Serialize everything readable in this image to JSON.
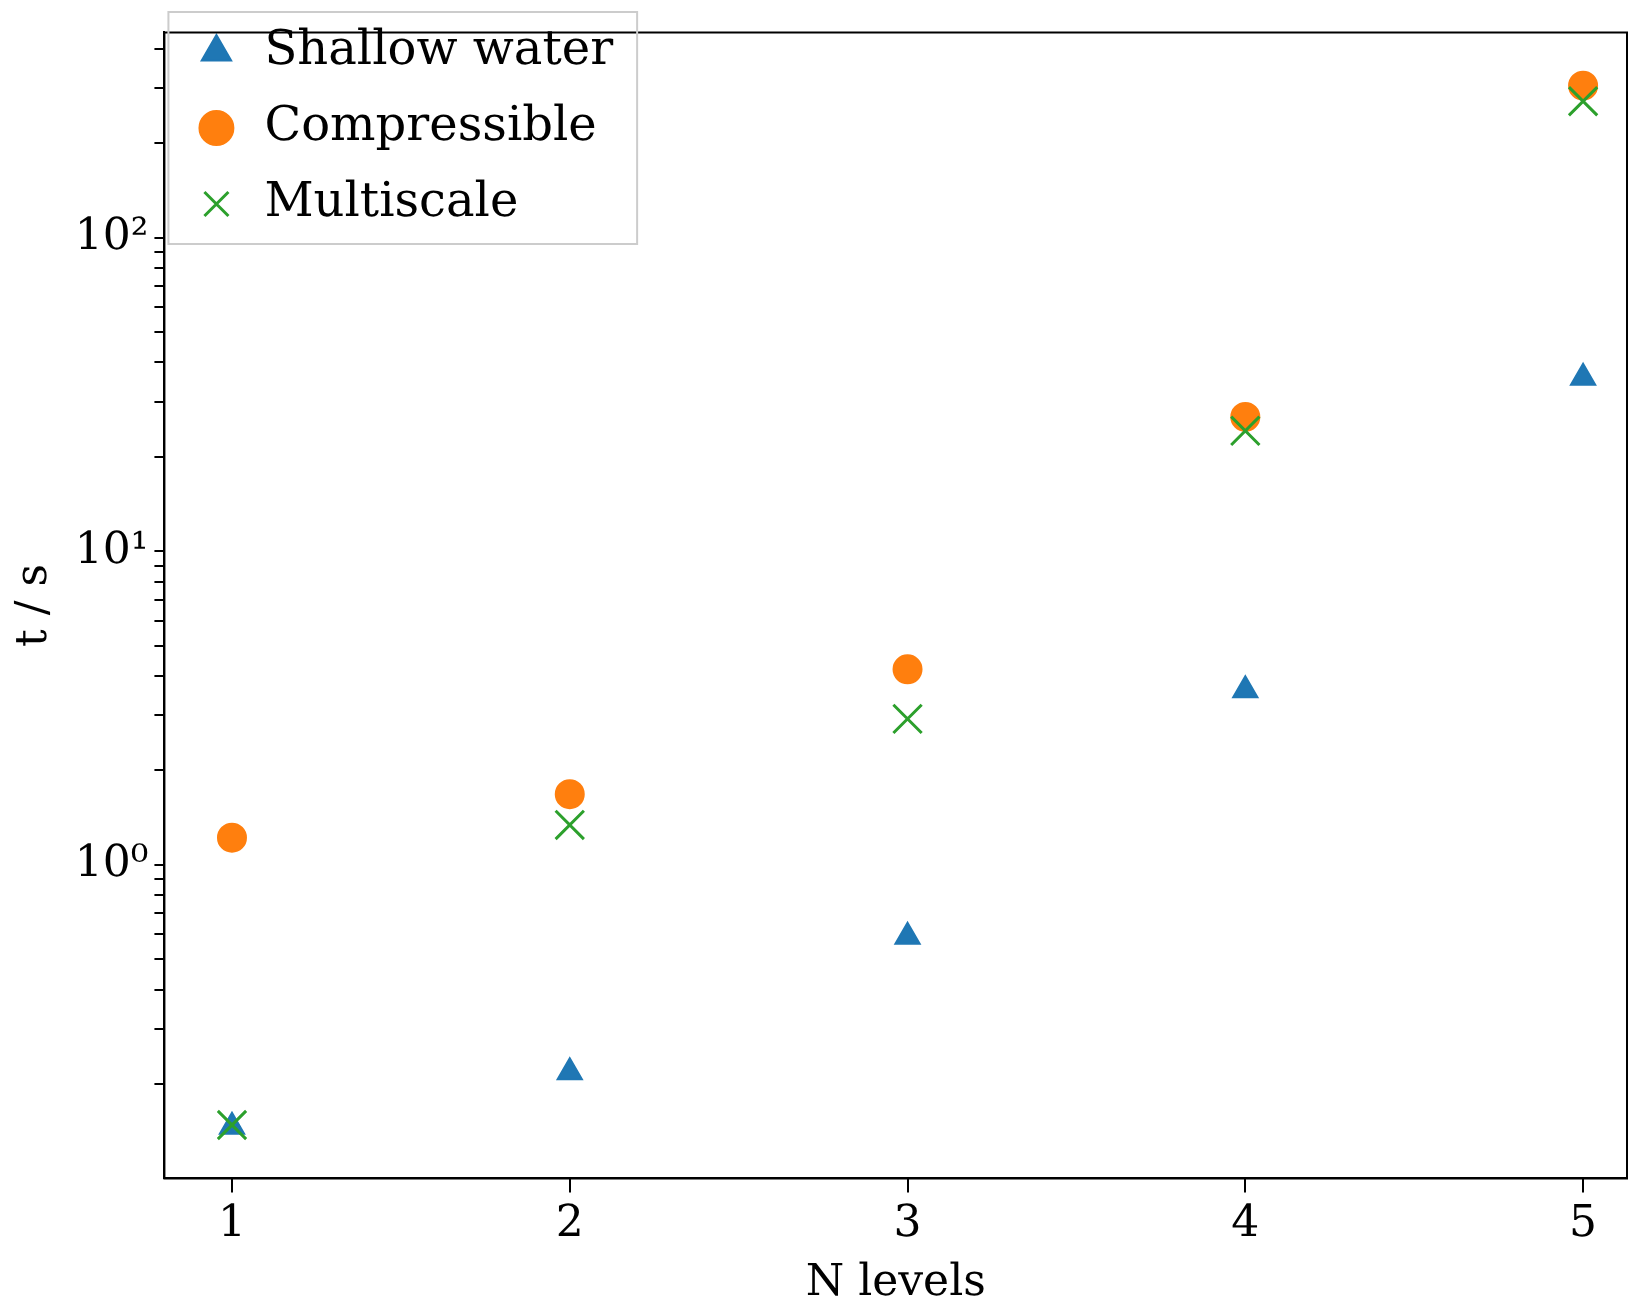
{
  "chart_data": {
    "type": "scatter",
    "xlabel": "N levels",
    "ylabel": "t / s",
    "log": "y",
    "grid": false,
    "legend": "top left",
    "x": [
      1,
      2,
      3,
      4,
      5
    ],
    "xlim": [
      0.8,
      5.13
    ],
    "xticks": [
      1,
      2,
      3,
      4,
      5
    ],
    "ylim": [
      0.1,
      451
    ],
    "yticks": [
      {
        "value": 0.2,
        "label": null
      },
      {
        "value": 0.3,
        "label": null
      },
      {
        "value": 0.4,
        "label": null
      },
      {
        "value": 0.5,
        "label": null
      },
      {
        "value": 0.6,
        "label": null
      },
      {
        "value": 0.7,
        "label": null
      },
      {
        "value": 0.8,
        "label": null
      },
      {
        "value": 0.9,
        "label": null
      },
      {
        "value": 1,
        "label": "10⁰"
      },
      {
        "value": 2,
        "label": null
      },
      {
        "value": 3,
        "label": null
      },
      {
        "value": 4,
        "label": null
      },
      {
        "value": 5,
        "label": null
      },
      {
        "value": 6,
        "label": null
      },
      {
        "value": 7,
        "label": null
      },
      {
        "value": 8,
        "label": null
      },
      {
        "value": 9,
        "label": null
      },
      {
        "value": 10,
        "label": "10¹"
      },
      {
        "value": 20,
        "label": null
      },
      {
        "value": 30,
        "label": null
      },
      {
        "value": 40,
        "label": null
      },
      {
        "value": 50,
        "label": null
      },
      {
        "value": 60,
        "label": null
      },
      {
        "value": 70,
        "label": null
      },
      {
        "value": 80,
        "label": null
      },
      {
        "value": 90,
        "label": null
      },
      {
        "value": 100,
        "label": "10²"
      },
      {
        "value": 200,
        "label": null
      },
      {
        "value": 300,
        "label": null
      },
      {
        "value": 400,
        "label": null
      }
    ],
    "series": [
      {
        "name": "Shallow water",
        "color": "#1f77b4",
        "marker": "triangle",
        "values": [
          0.146,
          0.218,
          0.59,
          3.6,
          35.7
        ]
      },
      {
        "name": "Compressible",
        "color": "#ff7f0e",
        "marker": "circle",
        "values": [
          1.22,
          1.68,
          4.2,
          26.8,
          305
        ]
      },
      {
        "name": "Multiscale",
        "color": "#2ca02c",
        "marker": "cross",
        "values": [
          0.148,
          1.34,
          2.92,
          24.2,
          272
        ]
      }
    ]
  }
}
